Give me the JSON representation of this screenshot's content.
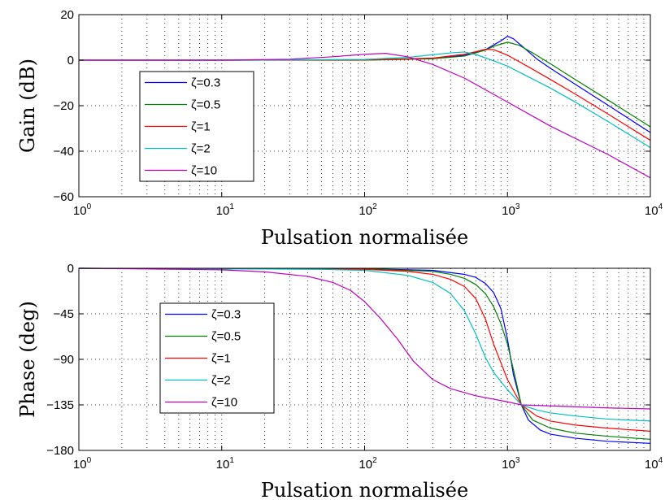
{
  "chart_data": [
    {
      "type": "line",
      "xscale": "log",
      "xlim": [
        1,
        10000
      ],
      "ylim": [
        -60,
        20
      ],
      "xlabel": "Pulsation normalisée",
      "ylabel": "Gain (dB)",
      "title": "",
      "grid": true,
      "legend_position": "center-left",
      "x_tick_labels": [
        {
          "base": "10",
          "exp": "0"
        },
        {
          "base": "10",
          "exp": "1"
        },
        {
          "base": "10",
          "exp": "2"
        },
        {
          "base": "10",
          "exp": "3"
        },
        {
          "base": "10",
          "exp": "4"
        }
      ],
      "y_ticks": [
        -60,
        -40,
        -20,
        0,
        20
      ],
      "y_tick_labels": [
        "−60",
        "−40",
        "−20",
        "0",
        "20"
      ],
      "series": [
        {
          "name": "ζ=0.3",
          "color": "#0000ff",
          "x": [
            1,
            10,
            100,
            300,
            500,
            700,
            900,
            1000,
            1100,
            1300,
            1600,
            2000,
            3000,
            5000,
            10000
          ],
          "y": [
            0,
            0,
            0.1,
            0.7,
            2.1,
            4.6,
            8.5,
            10.5,
            9.4,
            5.5,
            0.6,
            -3.6,
            -10.7,
            -19.6,
            -31.8
          ]
        },
        {
          "name": "ζ=0.5",
          "color": "#008000",
          "x": [
            1,
            10,
            100,
            300,
            500,
            700,
            800,
            1000,
            1200,
            1500,
            2000,
            3000,
            5000,
            10000
          ],
          "y": [
            0,
            0,
            0.0,
            0.6,
            1.8,
            4.4,
            6.1,
            7.9,
            6.6,
            3.2,
            -1.6,
            -8.6,
            -17.3,
            -29.3
          ]
        },
        {
          "name": "ζ=1",
          "color": "#ff0000",
          "x": [
            1,
            10,
            100,
            300,
            500,
            600,
            700,
            800,
            1000,
            1500,
            2000,
            3000,
            5000,
            10000
          ],
          "y": [
            0,
            0,
            0.1,
            0.9,
            2.6,
            3.7,
            4.8,
            4.6,
            2.2,
            -4.0,
            -8.5,
            -15.0,
            -23.5,
            -35.2
          ]
        },
        {
          "name": "ζ=2",
          "color": "#00bfbf",
          "x": [
            1,
            10,
            100,
            200,
            300,
            400,
            500,
            600,
            800,
            1000,
            2000,
            3000,
            5000,
            10000
          ],
          "y": [
            0,
            0,
            0.3,
            1.2,
            2.4,
            3.2,
            3.6,
            2.5,
            -0.3,
            -2.6,
            -12.3,
            -18.5,
            -26.8,
            -38.4
          ]
        },
        {
          "name": "ζ=10",
          "color": "#bf00bf",
          "x": [
            1,
            10,
            30,
            60,
            100,
            140,
            200,
            300,
            500,
            1000,
            2000,
            5000,
            10000
          ],
          "y": [
            0,
            0,
            0.4,
            1.5,
            2.6,
            3.0,
            1.5,
            -1.9,
            -7.9,
            -18.4,
            -29.0,
            -41.3,
            -51.7
          ]
        }
      ]
    },
    {
      "type": "line",
      "xscale": "log",
      "xlim": [
        1,
        10000
      ],
      "ylim": [
        -180,
        0
      ],
      "xlabel": "Pulsation normalisée",
      "ylabel": "Phase (deg)",
      "title": "",
      "grid": true,
      "legend_position": "center-left",
      "x_tick_labels": [
        {
          "base": "10",
          "exp": "0"
        },
        {
          "base": "10",
          "exp": "1"
        },
        {
          "base": "10",
          "exp": "2"
        },
        {
          "base": "10",
          "exp": "3"
        },
        {
          "base": "10",
          "exp": "4"
        }
      ],
      "y_ticks": [
        -180,
        -135,
        -90,
        -45,
        0
      ],
      "y_tick_labels": [
        "−180",
        "−135",
        "−90",
        "−45",
        "0"
      ],
      "series": [
        {
          "name": "ζ=0.3",
          "color": "#0000ff",
          "x": [
            1,
            100,
            300,
            500,
            600,
            700,
            800,
            900,
            1000,
            1100,
            1250,
            1400,
            1700,
            2000,
            3000,
            5000,
            10000
          ],
          "y": [
            0,
            -0.5,
            -2,
            -6,
            -9,
            -15,
            -24,
            -40,
            -70,
            -105,
            -135,
            -150,
            -160,
            -164,
            -168,
            -171,
            -173
          ]
        },
        {
          "name": "ζ=0.5",
          "color": "#008000",
          "x": [
            1,
            100,
            300,
            400,
            500,
            600,
            700,
            800,
            900,
            1000,
            1100,
            1250,
            1500,
            2000,
            3000,
            5000,
            10000
          ],
          "y": [
            0,
            -0.5,
            -3,
            -6,
            -10,
            -16,
            -25,
            -38,
            -55,
            -75,
            -100,
            -135,
            -150,
            -158,
            -163,
            -166,
            -169
          ]
        },
        {
          "name": "ζ=1",
          "color": "#ff0000",
          "x": [
            1,
            100,
            200,
            300,
            400,
            500,
            600,
            700,
            800,
            1000,
            1250,
            1600,
            2000,
            3000,
            5000,
            10000
          ],
          "y": [
            0,
            -1,
            -3,
            -6,
            -11,
            -18,
            -30,
            -50,
            -75,
            -110,
            -135,
            -146,
            -151,
            -155,
            -158,
            -161
          ]
        },
        {
          "name": "ζ=2",
          "color": "#00bfbf",
          "x": [
            1,
            50,
            100,
            200,
            300,
            400,
            500,
            600,
            700,
            800,
            1000,
            1250,
            1600,
            2000,
            3000,
            5000,
            10000
          ],
          "y": [
            0,
            -1,
            -2,
            -7,
            -14,
            -25,
            -42,
            -65,
            -88,
            -103,
            -120,
            -135,
            -140,
            -143,
            -146,
            -149,
            -151
          ]
        },
        {
          "name": "ζ=10",
          "color": "#bf00bf",
          "x": [
            1,
            10,
            20,
            40,
            60,
            80,
            100,
            130,
            170,
            220,
            300,
            400,
            600,
            1000,
            1250,
            2000,
            5000,
            10000
          ],
          "y": [
            0,
            -1.5,
            -3.5,
            -8,
            -14,
            -22,
            -33,
            -50,
            -70,
            -92,
            -110,
            -119,
            -126,
            -132,
            -135,
            -136,
            -138,
            -139
          ]
        }
      ]
    }
  ]
}
